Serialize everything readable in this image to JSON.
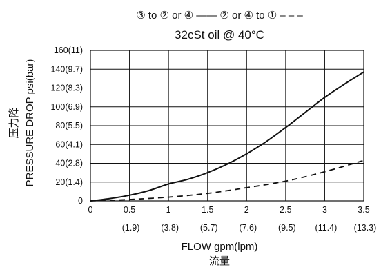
{
  "chart_data": {
    "type": "line",
    "legend_line": "③ to ② or ④ —— ② or ④ to ① – – –",
    "legend": {
      "placement": "top-center",
      "series1_label": "③ to ② or ④",
      "series2_label": "② or ④ to ①"
    },
    "subtitle": "32cSt oil @ 40°C",
    "xlabel": "FLOW gpm(lpm)",
    "xlabel_cn": "流量",
    "ylabel": "PRESSURE DROP psi(bar)",
    "ylabel_cn": "压力降",
    "xlim": [
      0,
      3.5
    ],
    "ylim": [
      0,
      160
    ],
    "x_ticks": [
      0,
      0.5,
      1,
      1.5,
      2,
      2.5,
      3,
      3.5
    ],
    "x_tick_labels": [
      "0",
      "0.5",
      "1",
      "1.5",
      "2",
      "2.5",
      "3",
      "3.5"
    ],
    "x_tick_labels_lpm": [
      "",
      "(1.9)",
      "(3.8)",
      "(5.7)",
      "(7.6)",
      "(9.5)",
      "(11.4)",
      "(13.3)"
    ],
    "y_ticks": [
      0,
      20,
      40,
      60,
      80,
      100,
      120,
      140,
      160
    ],
    "y_tick_labels": [
      "0",
      "20(1.4)",
      "40(2.8)",
      "60(4.1)",
      "80(5.5)",
      "100(6.9)",
      "120(8.3)",
      "140(9.7)",
      "160(11)"
    ],
    "grid": {
      "vertical": true,
      "horizontal": true
    },
    "series": [
      {
        "line_style": "solid",
        "x": [
          0,
          0.25,
          0.5,
          0.75,
          1.0,
          1.25,
          1.5,
          1.75,
          2.0,
          2.25,
          2.5,
          2.75,
          3.0,
          3.25,
          3.5
        ],
        "y": [
          0,
          2.5,
          6,
          11,
          18,
          23,
          30,
          39,
          50,
          63,
          78,
          94,
          110,
          124,
          137
        ]
      },
      {
        "line_style": "dashed",
        "x": [
          0,
          0.5,
          1.0,
          1.5,
          2.0,
          2.5,
          3.0,
          3.5
        ],
        "y": [
          0,
          1.5,
          4,
          8,
          14,
          21,
          31,
          43
        ]
      }
    ],
    "colors": {
      "line": "#111111",
      "background": "#ffffff"
    }
  }
}
